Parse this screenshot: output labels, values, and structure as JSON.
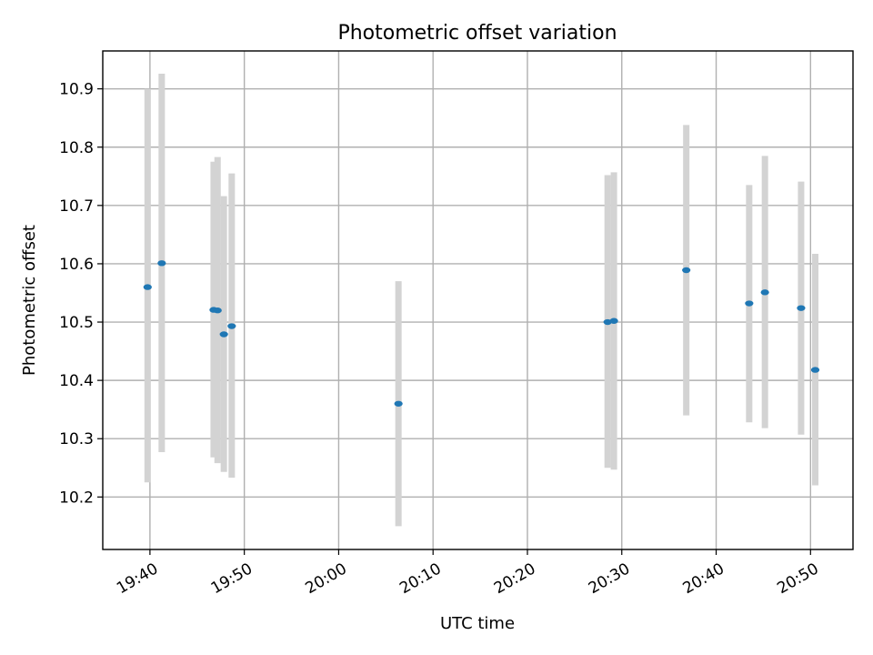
{
  "chart_data": {
    "type": "scatter",
    "title": "Photometric offset variation",
    "xlabel": "UTC time",
    "ylabel": "Photometric offset",
    "xlim": [
      "19:35:00",
      "20:54:30"
    ],
    "ylim": [
      10.11,
      10.965
    ],
    "grid": true,
    "x_ticks": [
      "19:40",
      "19:50",
      "20:00",
      "20:10",
      "20:20",
      "20:30",
      "20:40",
      "20:50"
    ],
    "y_ticks": [
      10.2,
      10.3,
      10.4,
      10.5,
      10.6,
      10.7,
      10.8,
      10.9
    ],
    "series": [
      {
        "points": [
          {
            "x": "19:39:45",
            "y": 10.56,
            "yerr_low": 10.225,
            "yerr_high": 10.9
          },
          {
            "x": "19:41:15",
            "y": 10.601,
            "yerr_low": 10.277,
            "yerr_high": 10.926
          },
          {
            "x": "19:46:45",
            "y": 10.521,
            "yerr_low": 10.268,
            "yerr_high": 10.775
          },
          {
            "x": "19:47:10",
            "y": 10.52,
            "yerr_low": 10.258,
            "yerr_high": 10.783
          },
          {
            "x": "19:47:50",
            "y": 10.479,
            "yerr_low": 10.243,
            "yerr_high": 10.716
          },
          {
            "x": "19:48:40",
            "y": 10.493,
            "yerr_low": 10.233,
            "yerr_high": 10.755
          },
          {
            "x": "20:06:20",
            "y": 10.36,
            "yerr_low": 10.15,
            "yerr_high": 10.57
          },
          {
            "x": "20:28:30",
            "y": 10.5,
            "yerr_low": 10.25,
            "yerr_high": 10.752
          },
          {
            "x": "20:29:10",
            "y": 10.502,
            "yerr_low": 10.247,
            "yerr_high": 10.757
          },
          {
            "x": "20:36:50",
            "y": 10.589,
            "yerr_low": 10.34,
            "yerr_high": 10.838
          },
          {
            "x": "20:43:30",
            "y": 10.532,
            "yerr_low": 10.328,
            "yerr_high": 10.735
          },
          {
            "x": "20:45:10",
            "y": 10.551,
            "yerr_low": 10.318,
            "yerr_high": 10.785
          },
          {
            "x": "20:49:00",
            "y": 10.524,
            "yerr_low": 10.307,
            "yerr_high": 10.741
          },
          {
            "x": "20:50:30",
            "y": 10.418,
            "yerr_low": 10.22,
            "yerr_high": 10.617
          }
        ]
      }
    ],
    "colors": {
      "marker": "#1f77b4",
      "errorbar": "#d3d3d3",
      "grid": "#b0b0b0",
      "axes": "#000000"
    }
  }
}
